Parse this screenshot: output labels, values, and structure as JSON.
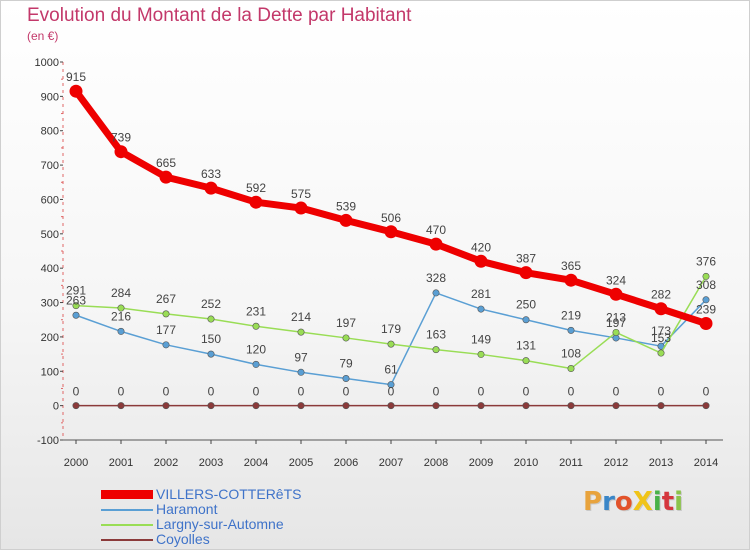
{
  "header": {
    "title": "Evolution du Montant de la Dette par Habitant",
    "unit": "(en €)"
  },
  "logo": {
    "text": "ProXiti",
    "letter_colors": [
      "#e8a33d",
      "#3a86c8",
      "#e2532b",
      "#f0c419",
      "#49b24a",
      "#d5363d",
      "#8bc34a"
    ]
  },
  "chart_data": {
    "type": "line",
    "x": [
      "2000",
      "2001",
      "2002",
      "2003",
      "2004",
      "2005",
      "2006",
      "2007",
      "2008",
      "2009",
      "2010",
      "2011",
      "2012",
      "2013",
      "2014"
    ],
    "ylim": [
      -100,
      1000
    ],
    "yticks": [
      -100,
      0,
      100,
      200,
      300,
      400,
      500,
      600,
      700,
      800,
      900,
      1000
    ],
    "grid": false,
    "legend_position": "bottom-left",
    "series": [
      {
        "name": "VILLERS-COTTERêTS",
        "color": "#ee0000",
        "values": [
          915,
          739,
          665,
          633,
          592,
          575,
          539,
          506,
          470,
          420,
          387,
          365,
          324,
          282,
          239
        ]
      },
      {
        "name": "Haramont",
        "color": "#5a9fd4",
        "values": [
          263,
          216,
          177,
          150,
          120,
          97,
          79,
          61,
          328,
          281,
          250,
          219,
          197,
          173,
          308
        ]
      },
      {
        "name": "Largny-sur-Automne",
        "color": "#99dd55",
        "values": [
          291,
          284,
          267,
          252,
          231,
          214,
          197,
          179,
          163,
          149,
          131,
          108,
          213,
          153,
          376
        ]
      },
      {
        "name": "Coyolles",
        "color": "#8b3a3a",
        "values": [
          0,
          0,
          0,
          0,
          0,
          0,
          0,
          0,
          0,
          0,
          0,
          0,
          0,
          0,
          0
        ]
      }
    ]
  }
}
